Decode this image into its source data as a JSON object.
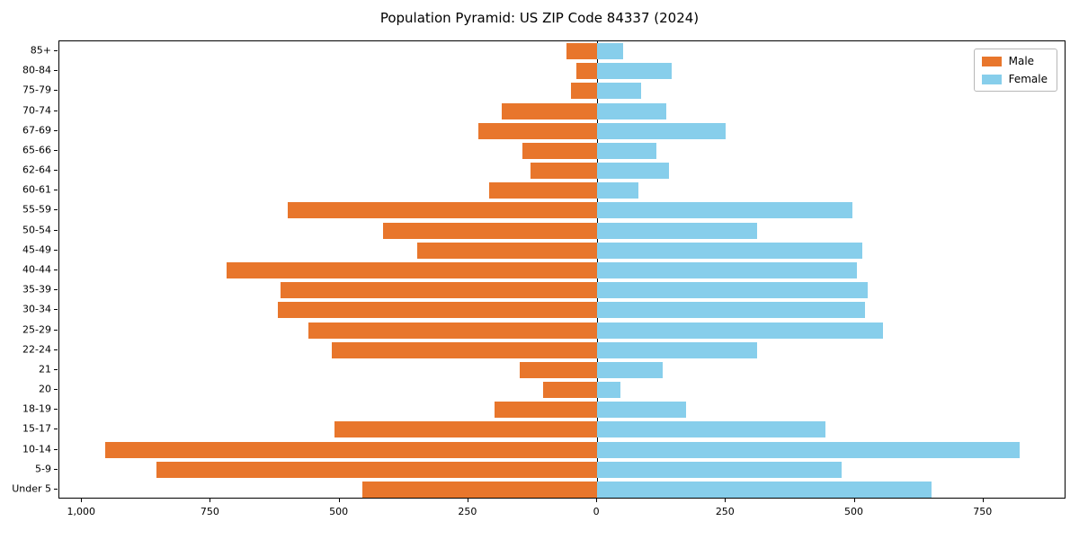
{
  "title": "Population Pyramid: US ZIP Code 84337 (2024)",
  "legend": {
    "male_label": "Male",
    "female_label": "Female"
  },
  "colors": {
    "male": "#E8762C",
    "female": "#87CEEB",
    "axis": "#000000"
  },
  "chart_data": {
    "type": "bar",
    "orientation": "horizontal",
    "title": "Population Pyramid: US ZIP Code 84337 (2024)",
    "categories_top_to_bottom": [
      "85+",
      "80-84",
      "75-79",
      "70-74",
      "67-69",
      "65-66",
      "62-64",
      "60-61",
      "55-59",
      "50-54",
      "45-49",
      "40-44",
      "35-39",
      "30-34",
      "25-29",
      "22-24",
      "21",
      "20",
      "18-19",
      "15-17",
      "10-14",
      "5-9",
      "Under 5"
    ],
    "series": [
      {
        "name": "Male",
        "side": "left",
        "color": "#E8762C",
        "values": [
          60,
          40,
          50,
          185,
          230,
          145,
          130,
          210,
          600,
          415,
          350,
          720,
          615,
          620,
          560,
          515,
          150,
          105,
          200,
          510,
          955,
          855,
          455
        ]
      },
      {
        "name": "Female",
        "side": "right",
        "color": "#87CEEB",
        "values": [
          50,
          145,
          85,
          135,
          250,
          115,
          140,
          80,
          495,
          310,
          515,
          505,
          525,
          520,
          555,
          310,
          128,
          45,
          173,
          443,
          820,
          475,
          650
        ]
      }
    ],
    "xlim": [
      -1044,
      911
    ],
    "x_ticks": [
      -1000,
      -750,
      -500,
      -250,
      0,
      250,
      500,
      750
    ],
    "x_tick_labels": [
      "1,000",
      "750",
      "500",
      "250",
      "0",
      "250",
      "500",
      "750"
    ],
    "legend_position": "upper right",
    "zero_line": true,
    "grid": false
  }
}
